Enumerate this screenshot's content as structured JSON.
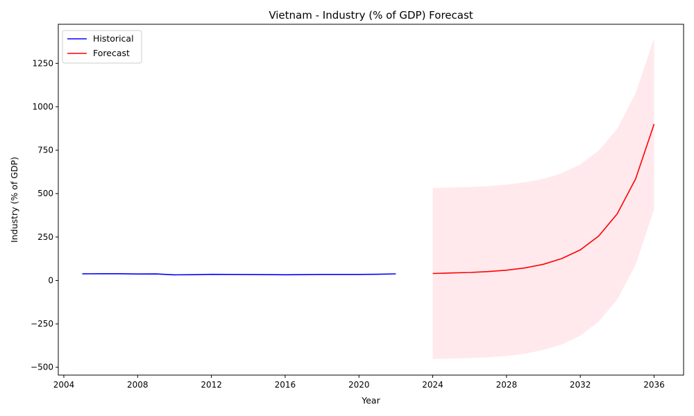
{
  "chart_data": {
    "type": "line",
    "title": "Vietnam - Industry (% of GDP) Forecast",
    "xlabel": "Year",
    "ylabel": "Industry (% of GDP)",
    "xlim": [
      2003.7,
      2037.6
    ],
    "ylim": [
      -545,
      1475
    ],
    "x_ticks": [
      2004,
      2008,
      2012,
      2016,
      2020,
      2024,
      2028,
      2032,
      2036
    ],
    "y_ticks": [
      -500,
      -250,
      0,
      250,
      500,
      750,
      1000,
      1250
    ],
    "grid": false,
    "legend_position": "top-left",
    "series": [
      {
        "name": "Historical",
        "color": "#0000ff",
        "x": [
          2005,
          2006,
          2007,
          2008,
          2009,
          2010,
          2011,
          2012,
          2013,
          2014,
          2015,
          2016,
          2017,
          2018,
          2019,
          2020,
          2021,
          2022
        ],
        "y": [
          38.1,
          38.6,
          38.5,
          37.1,
          37.4,
          32.1,
          33.2,
          35.2,
          34.6,
          34.4,
          33.3,
          32.7,
          33.4,
          34.6,
          34.8,
          34.8,
          35.6,
          37.8
        ]
      },
      {
        "name": "Forecast",
        "color": "#ff0000",
        "x": [
          2024,
          2025,
          2026,
          2027,
          2028,
          2029,
          2030,
          2031,
          2032,
          2033,
          2034,
          2035,
          2036
        ],
        "y": [
          40,
          43,
          46,
          51,
          59,
          72,
          93,
          126,
          176,
          256,
          383,
          585,
          900
        ]
      }
    ],
    "confidence_band": {
      "color": "#ffc0cb",
      "x": [
        2024,
        2025,
        2026,
        2027,
        2028,
        2029,
        2030,
        2031,
        2032,
        2033,
        2034,
        2035,
        2036
      ],
      "lower": [
        -452,
        -450,
        -447,
        -443,
        -435,
        -422,
        -400,
        -368,
        -318,
        -237,
        -110,
        90,
        410
      ],
      "upper": [
        532,
        535,
        538,
        543,
        552,
        565,
        585,
        618,
        668,
        748,
        872,
        1078,
        1395
      ]
    }
  }
}
